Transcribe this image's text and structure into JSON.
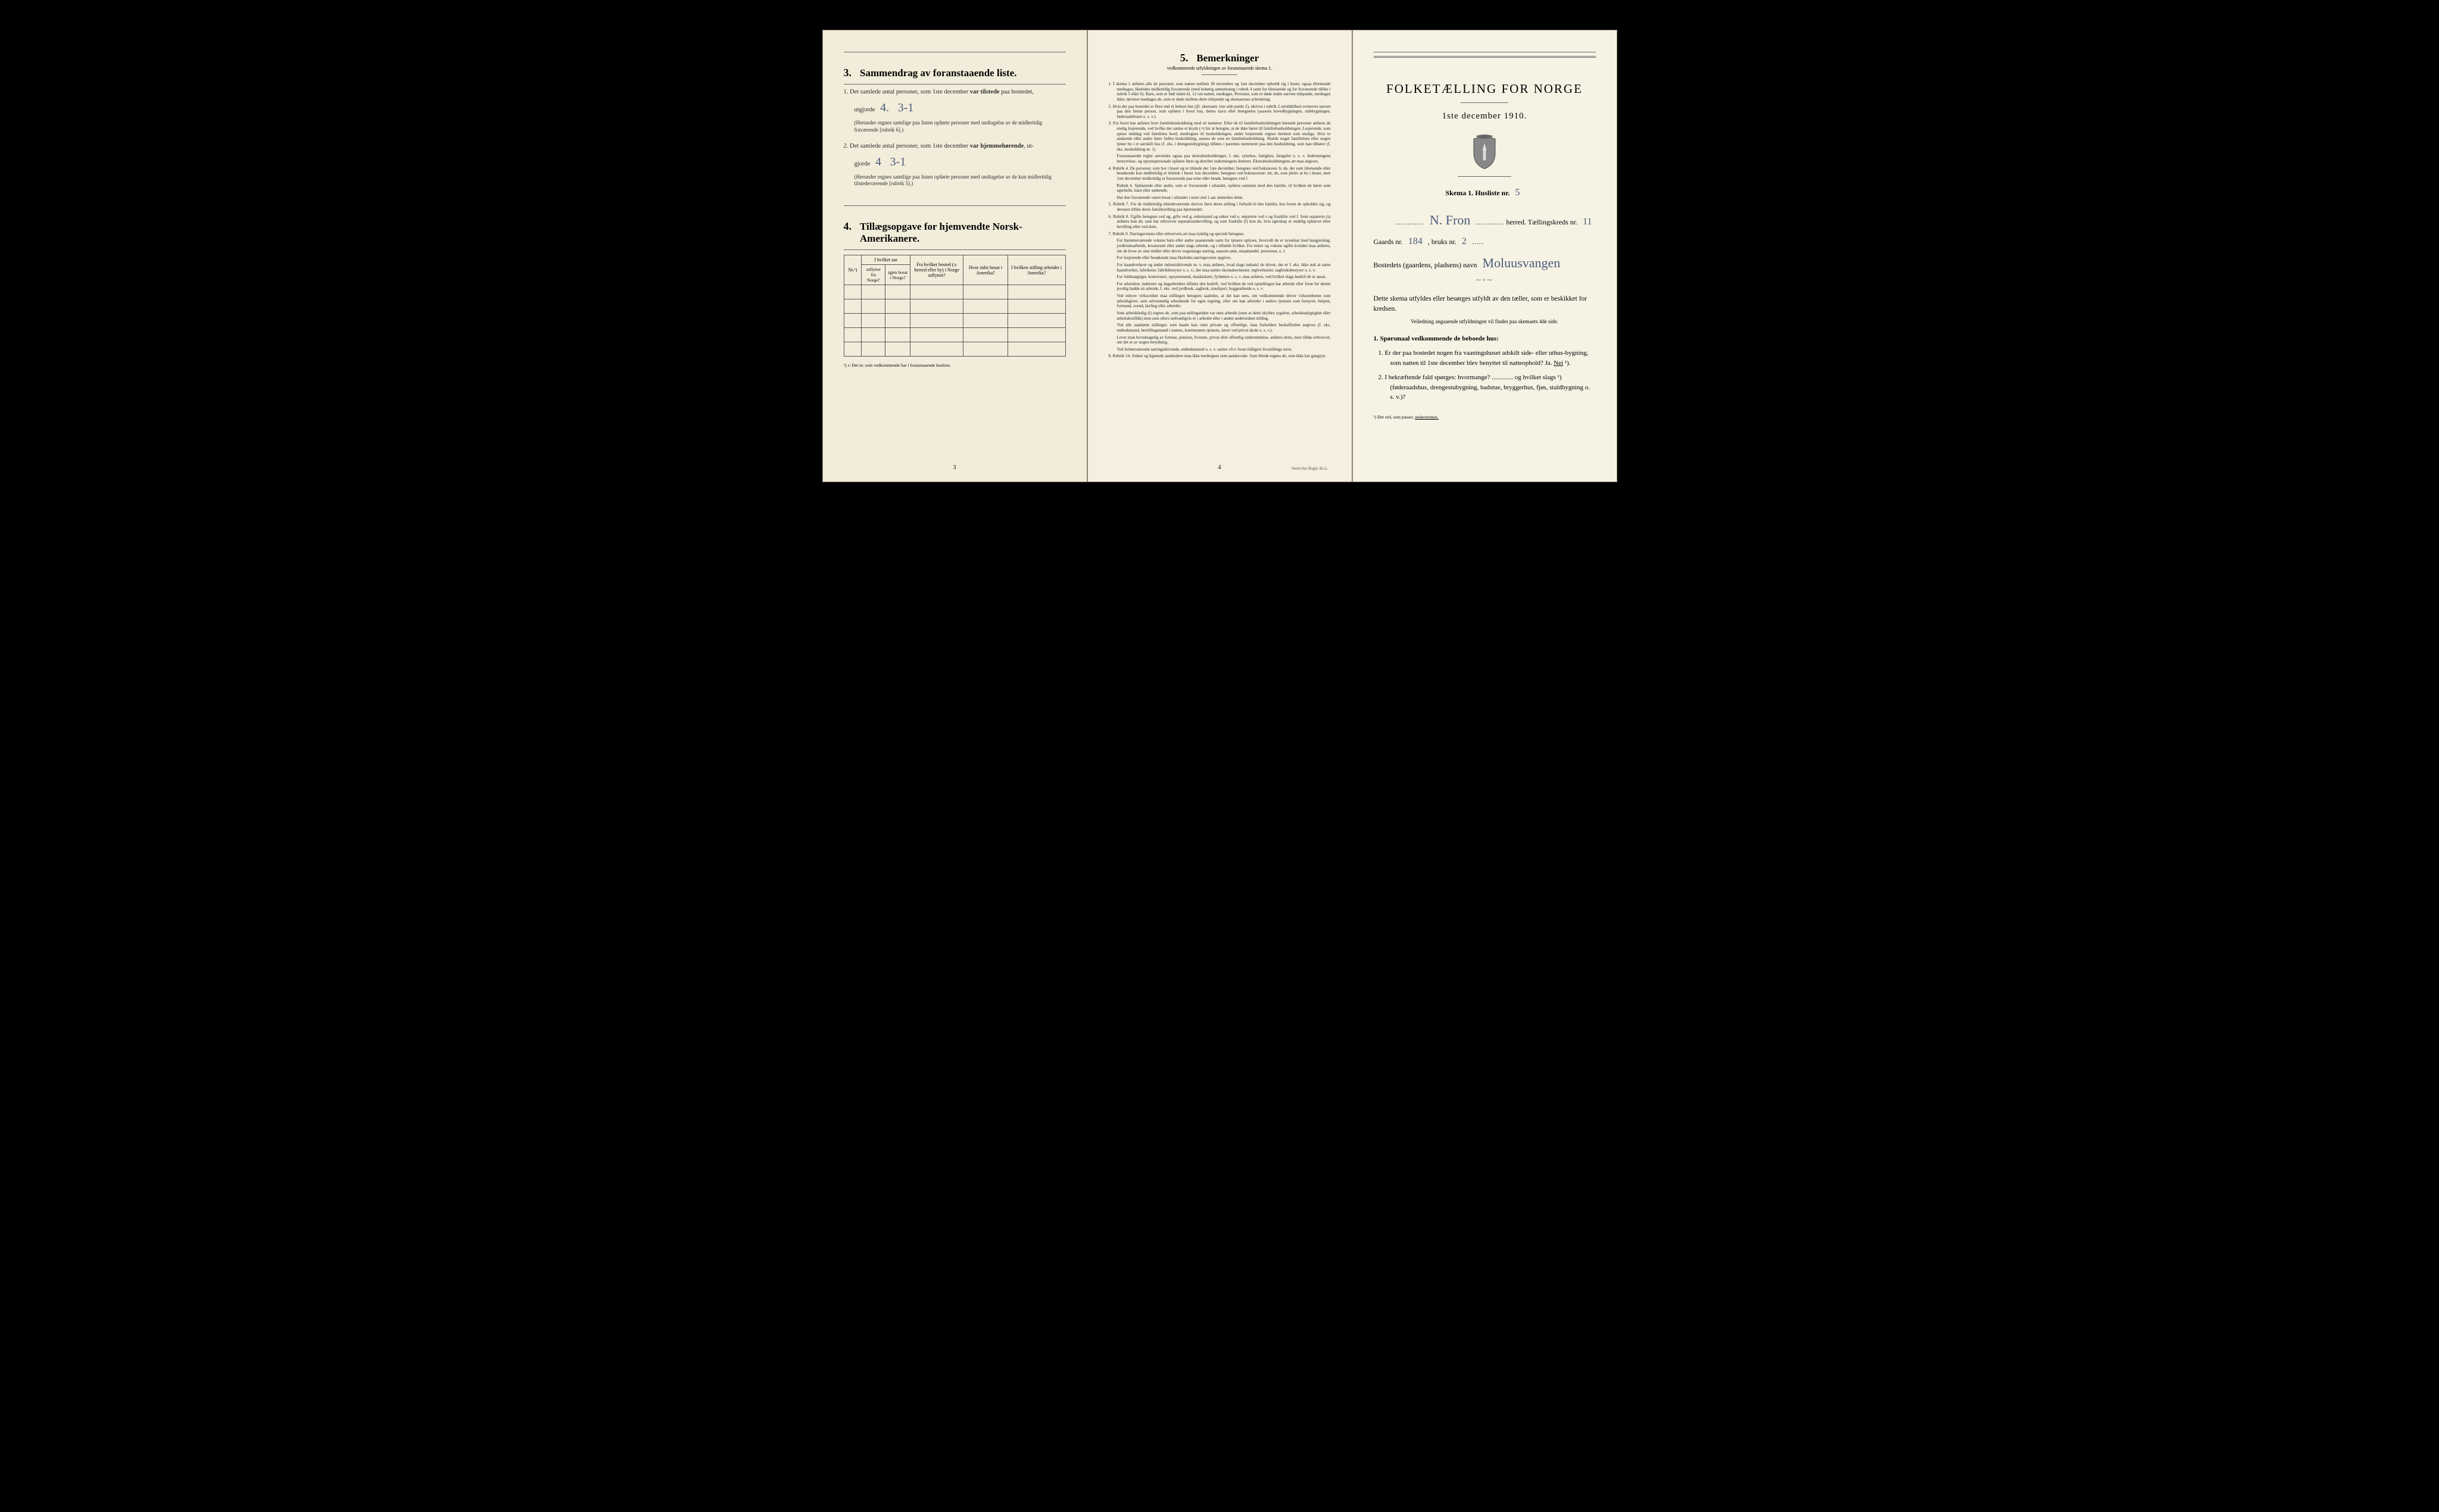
{
  "page3": {
    "sec3": {
      "num": "3.",
      "title": "Sammendrag av foranstaaende liste.",
      "item1_pre": "1.  Det samlede antal personer, som 1ste december ",
      "item1_strong": "var tilstede",
      "item1_post": " paa bostedet,",
      "utgjorde": "utgjorde",
      "hand1a": "4.",
      "hand1b": "3-1",
      "note1": "(Herunder regnes samtlige paa listen opførte personer med undtagelse av de midlertidig fraværende [rubrik 6].)",
      "item2_pre": "2.  Det samlede antal personer, som 1ste december ",
      "item2_strong": "var hjemmehørende",
      "item2_post": ", ut-",
      "gjorde": "gjorde",
      "hand2a": "4",
      "hand2b": "3-1",
      "note2": "(Herunder regnes samtlige paa listen opførte personer med undtagelse av de kun midlertidig tilstedeværende [rubrik 5].)"
    },
    "sec4": {
      "num": "4.",
      "title": "Tillægsopgave for hjemvendte Norsk-Amerikanere.",
      "cols": {
        "c1": "Nr.¹)",
        "c2a": "I hvilket aar",
        "c2_sub1": "utflyttet fra Norge?",
        "c2_sub2": "igjen bosat i Norge?",
        "c3": "Fra hvilket bosted (ɔ: herred eller by) i Norge utflyttet?",
        "c4": "Hvor sidst bosat i Amerika?",
        "c5": "I hvilken stilling arbeidet i Amerika?"
      },
      "footnote": "¹) ɔ: Det nr. som vedkommende har i foranstaaende husliste."
    },
    "pagenum": "3"
  },
  "page4": {
    "sec5": {
      "num": "5.",
      "title": "Bemerkninger"
    },
    "subtitle": "vedkommende utfyldningen av foranstaaende skema 1.",
    "items": {
      "i1": "1.  I skema 1 anføres alle de personer, som natten mellem 30 november og 1ste december opholdt sig i huset; ogsaa tilreisende medtages; likeledes midlertidig fraværende (med behørig anmerkning i rubrik 4 samt for tilreisende og for fraværende tillike i rubrik 5 eller 6). Barn, som er født inden kl. 12 om natten, medtages. Personer, som er døde inden nævnte tidspunkt, medtages ikke; derimot medtages de, som er døde mellem dette tidspunkt og skemaernes avhentning.",
      "i2": "2.  Hvis der paa bostedet er flere end ét beboet hus (jfr. skemaets 1ste side punkt 2), skrives i rubrik 2 umiddelbart ovenover navnet paa den første person, som opføres i hvert hus, dettes navn eller betegnelse (saasom hovedbygningen, sidebygningen, føderaadshuset o. s. v.).",
      "i3": "3.  For hvert hus anføres hver familiehusholdning med sit nummer. Efter de til familiehusholdningen hørende personer anføres de enslig losjerende, ved hvilke der sættes et kryds (×) for at betegne, at de ikke hører til familiehusholdningen. Losjerende, som spiser middag ved familiens bord, medregnes til husholdningen; andre losjerende regnes derimot som enslige. Hvis to søskende eller andre fører fælles husholdning, ansees de som en familiehusholdning. Skulde noget familielem eller nogen tjener bo i et særskilt hus (f. eks. i drengestubygning) tilføies i parentes nummeret paa den husholdning, som han tilhører (f. eks. husholdning nr. 1).",
      "i3b": "Foranstaaende regler anvendes ogsaa paa ekstrahusholdninger, f. eks. sykehus, fattighus, fængsler o. s. v. Indretningens bestyrelses- og opsynspersonale opføres først og derefter indretningens lemmer. Ekstrahusholdningens art maa angives.",
      "i4": "4.  Rubrik 4.  De personer, som bor i huset og er tilstede der 1ste december, betegnes ved bokstaven: b; de, der som tilreisende eller besøkende kun midlertidig er tilstede i huset 1ste december, betegnes ved bokstaverne: mt; de, som pleier at bo i huset, men 1ste december midlertidig er fraværende paa reise eller besøk, betegnes ved f.",
      "i4b": "Rubrik 6.  Sjøfarende eller andre, som er fraværende i utlandet, opføres sammen med den familie, til hvilken de hører som egtefælle, barn eller søskende.",
      "i4c": "Har den fraværende været bosat i utlandet i mere end 1 aar anmerkes dette.",
      "i5": "5.  Rubrik 7.  For de midlertidig tilstedeværende skrives først deres stilling i forhold til den familie, hos hvem de opholder sig, og dernæst tillike deres familiestilling paa hjemstedet.",
      "i6": "6.  Rubrik 8.  Ugifte betegnes ved ug, gifte ved g, enkemænd og enker ved e, separerte ved s og fraskilte ved f. Som separerte (s) anføres kun de, som har erhvervet separationsbevilling, og som fraskilte (f) kun de, hvis egteskap er endelig ophævet efter bevilling eller ved dom.",
      "i7": "7.  Rubrik 9.  Næringsveiens eller erhvervets art maa tydelig og specielt betegnes.",
      "i7a": "For hjemmeværende voksne barn eller andre paarørende samt for tjenere oplyses, hvorvidt de er sysselsat med husgjerning, jordbruksarbeide, kreaturstel eller andet slags arbeide, og i tilfælde hvilket. For enker og voksne ugifte kvinder maa anføres, om de lever av sine midler eller driver nogenslags næring, saasom søm, smaahandel, pensionat, o. l.",
      "i7b": "For losjerende eller besøkende maa likeledes næringsveien opgives.",
      "i7c": "For haandverkere og andre industridrivende m. v. maa anføres, hvad slags industri de driver; det er f. eks. ikke nok at sætte haandverker, fabrikeier, fabrikbestyrer o. s. v.; der maa sættes skomakermester, teglverkseier, sagbruksbestyrer o. s. v.",
      "i7d": "For fuldmægtiger, kontorister, opsynsmænd, maskinister, fyrbøtere o. s. v. maa anføres, ved hvilket slags bedrift de er ansat.",
      "i7e": "For arbeidere, inderster og dagarbeidere tilføies den bedrift, ved hvilken de ved optællingen har arbeide eller forut for denne jevnlig hadde sit arbeide, f. eks. ved jordbruk, sagbruk, træsliperi, byggearbeide o. s. v.",
      "i7f": "Ved enhver virksomhet maa stillingen betegnes saaledes, at det kan sees, om vedkommende driver virksomheten som arbeidsgiver, som selvstændig arbeidende for egen regning, eller om han arbeider i andres tjeneste som bestyrer, betjent, formand, svend, lærling eller arbeider.",
      "i7g": "Som arbeidsledig (l) regnes de, som paa tællingstiden var uten arbeide (uten at dette skyldes sygdom, arbeidsudygtighet eller arbeitskonflikt) men som ellers sedvanligvis er i arbeide eller i anden underordnet stilling.",
      "i7h": "Ved alle saadanne stillinger, som baade kan være private og offentlige, maa forholdets beskaffenhet angives (f. eks. embedsmand, bestillingsmand i statens, kommunens tjeneste, lærer ved privat skole o. s. v.).",
      "i7i": "Lever man hovedsagelig av formue, pension, livrente, privat eller offentlig understøttelse, anføres dette, men tillike erhvervet, om det er av nogen betydning.",
      "i7j": "Ved forhenværende næringsdrivende, embedsmænd o. s. v. sættes «fv» foran tidligere livsstillings navn.",
      "i8": "8.  Rubrik 14.  Sinker og lignende aandssløve maa ikke medregnes som aandssvake. Som blinde regnes de, som ikke har gangsyn."
    },
    "pagenum": "4",
    "printer": "Steen'ske Bogtr.  Kr.a."
  },
  "page1": {
    "hero": "FOLKETÆLLING FOR NORGE",
    "date": "1ste december 1910.",
    "skema": "Skema 1.  Husliste nr.",
    "husliste_nr": "5",
    "herred_hand": "N. Fron",
    "herred_label": "herred.  Tællingskreds nr.",
    "kreds_nr": "11",
    "gaards_label": "Gaards nr.",
    "gaards_nr": "184",
    "bruks_label": ", bruks nr.",
    "bruks_nr": "2",
    "bosted_label": "Bostedets (gaardens, pladsens) navn",
    "bosted_hand": "Moluusvangen",
    "deco": "⁓⚬⁓",
    "para1": "Dette skema utfyldes eller besørges utfyldt av den tæller, som er beskikket for kredsen.",
    "para1_sub": "Veiledning angaaende utfyldningen vil findes paa skemaets 4de side.",
    "q_head": "1. Spørsmaal vedkommende de beboede hus:",
    "q1": "1.  Er der paa bostedet nogen fra vaaningshuset adskilt side- eller uthus-bygning, som natten til 1ste december blev benyttet til natteophold?   Ja.   Nei ¹).",
    "q2": "2.  I bekræftende fald spørges: hvormange? ............. og hvilket slags ¹) (føderaadshus, drengestubygning, badstue, bryggerhus, fjøs, staldbygning o. s. v.)?",
    "foot": "¹) Det ord, som passer, understrekes.",
    "nei": "Nei"
  }
}
